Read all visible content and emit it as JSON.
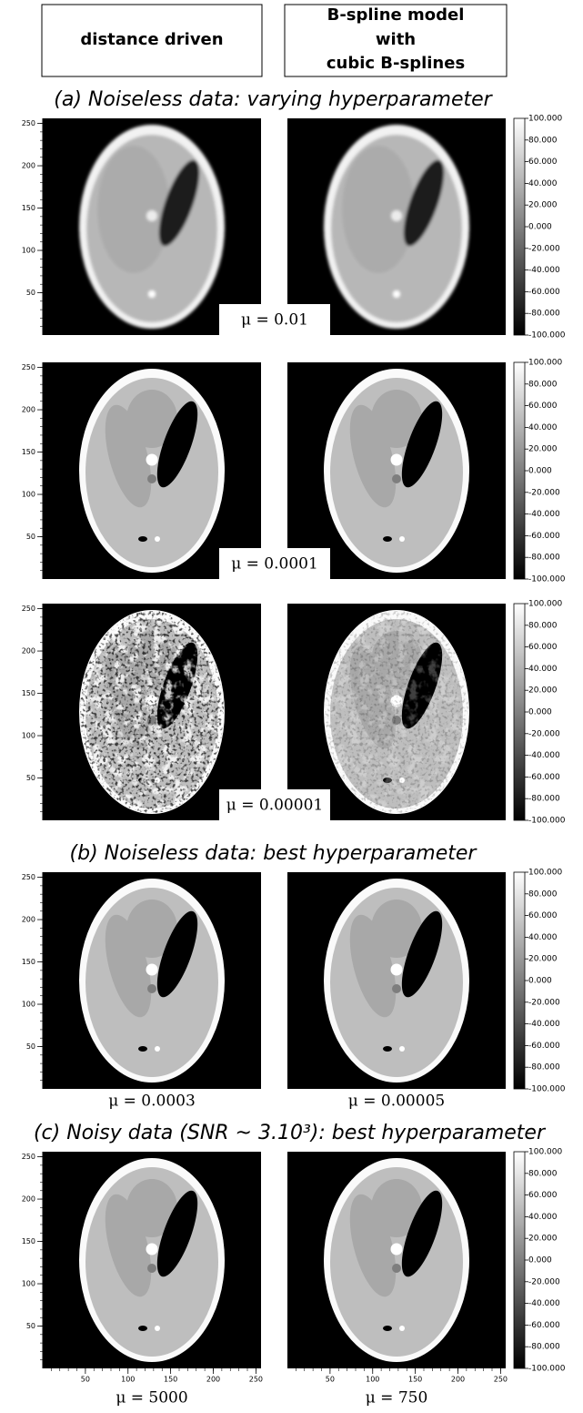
{
  "header": {
    "left": "distance driven",
    "right": [
      "B-spline model",
      "with",
      "cubic B-splines"
    ]
  },
  "sections": [
    "(a) Noiseless data: varying hyperparameter",
    "(b) Noiseless data: best hyperparameter",
    "(c) Noisy data (SNR ~ 3.10³): best hyperparameter"
  ],
  "rows": [
    {
      "mu": "μ = 0.01"
    },
    {
      "mu": "μ = 0.0001"
    },
    {
      "mu": "μ = 0.00001"
    },
    {
      "mu_left": "μ = 0.0003",
      "mu_right": "μ = 0.00005"
    },
    {
      "mu_left": "μ = 5000",
      "mu_right": "μ = 750"
    }
  ],
  "axes": {
    "lim": [
      0,
      256
    ],
    "yticks": [
      50,
      100,
      150,
      200,
      250
    ],
    "xticks": [
      50,
      100,
      150,
      200,
      250
    ]
  },
  "colorbar": {
    "lim": [
      -100,
      100
    ],
    "ticks": [
      {
        "value": 100,
        "label": "100.000"
      },
      {
        "value": 80,
        "label": "80.000"
      },
      {
        "value": 60,
        "label": "60.000"
      },
      {
        "value": 40,
        "label": "40.000"
      },
      {
        "value": 20,
        "label": "20.000"
      },
      {
        "value": 0,
        "label": "0.000"
      },
      {
        "value": -20,
        "label": "-20.000"
      },
      {
        "value": -40,
        "label": "-40.000"
      },
      {
        "value": -60,
        "label": "-60.000"
      },
      {
        "value": -80,
        "label": "-80.000"
      },
      {
        "value": -100,
        "label": "-100.000"
      }
    ]
  }
}
